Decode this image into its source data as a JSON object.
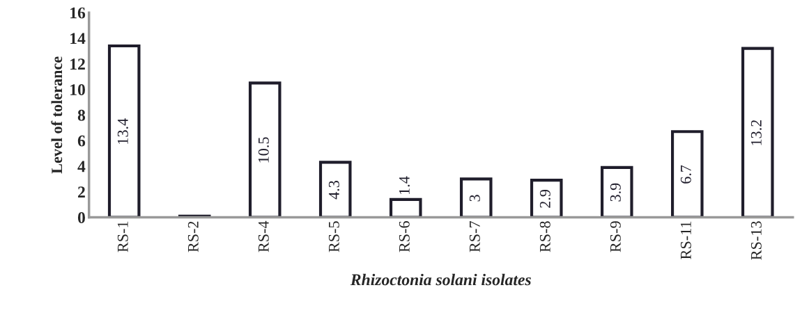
{
  "chart_data": {
    "type": "bar",
    "xlabel": "Rhizoctonia solani isolates",
    "ylabel": "Level of tolerance",
    "categories": [
      "RS-1",
      "RS-2",
      "RS-4",
      "RS-5",
      "RS-6",
      "RS-7",
      "RS-8",
      "RS-9",
      "RS-11",
      "RS-13"
    ],
    "values": [
      13.4,
      0.1,
      10.5,
      4.3,
      1.4,
      3,
      2.9,
      3.9,
      6.7,
      13.2
    ],
    "value_labels": [
      "13.4",
      null,
      "10.5",
      "4.3",
      "1.4",
      "3",
      "2.9",
      "3.9",
      "6.7",
      "13.2"
    ],
    "color": "#ffffff",
    "ylim": [
      0,
      16
    ],
    "yticks": [
      0,
      2,
      4,
      6,
      8,
      10,
      12,
      14,
      16
    ],
    "grid": false
  }
}
